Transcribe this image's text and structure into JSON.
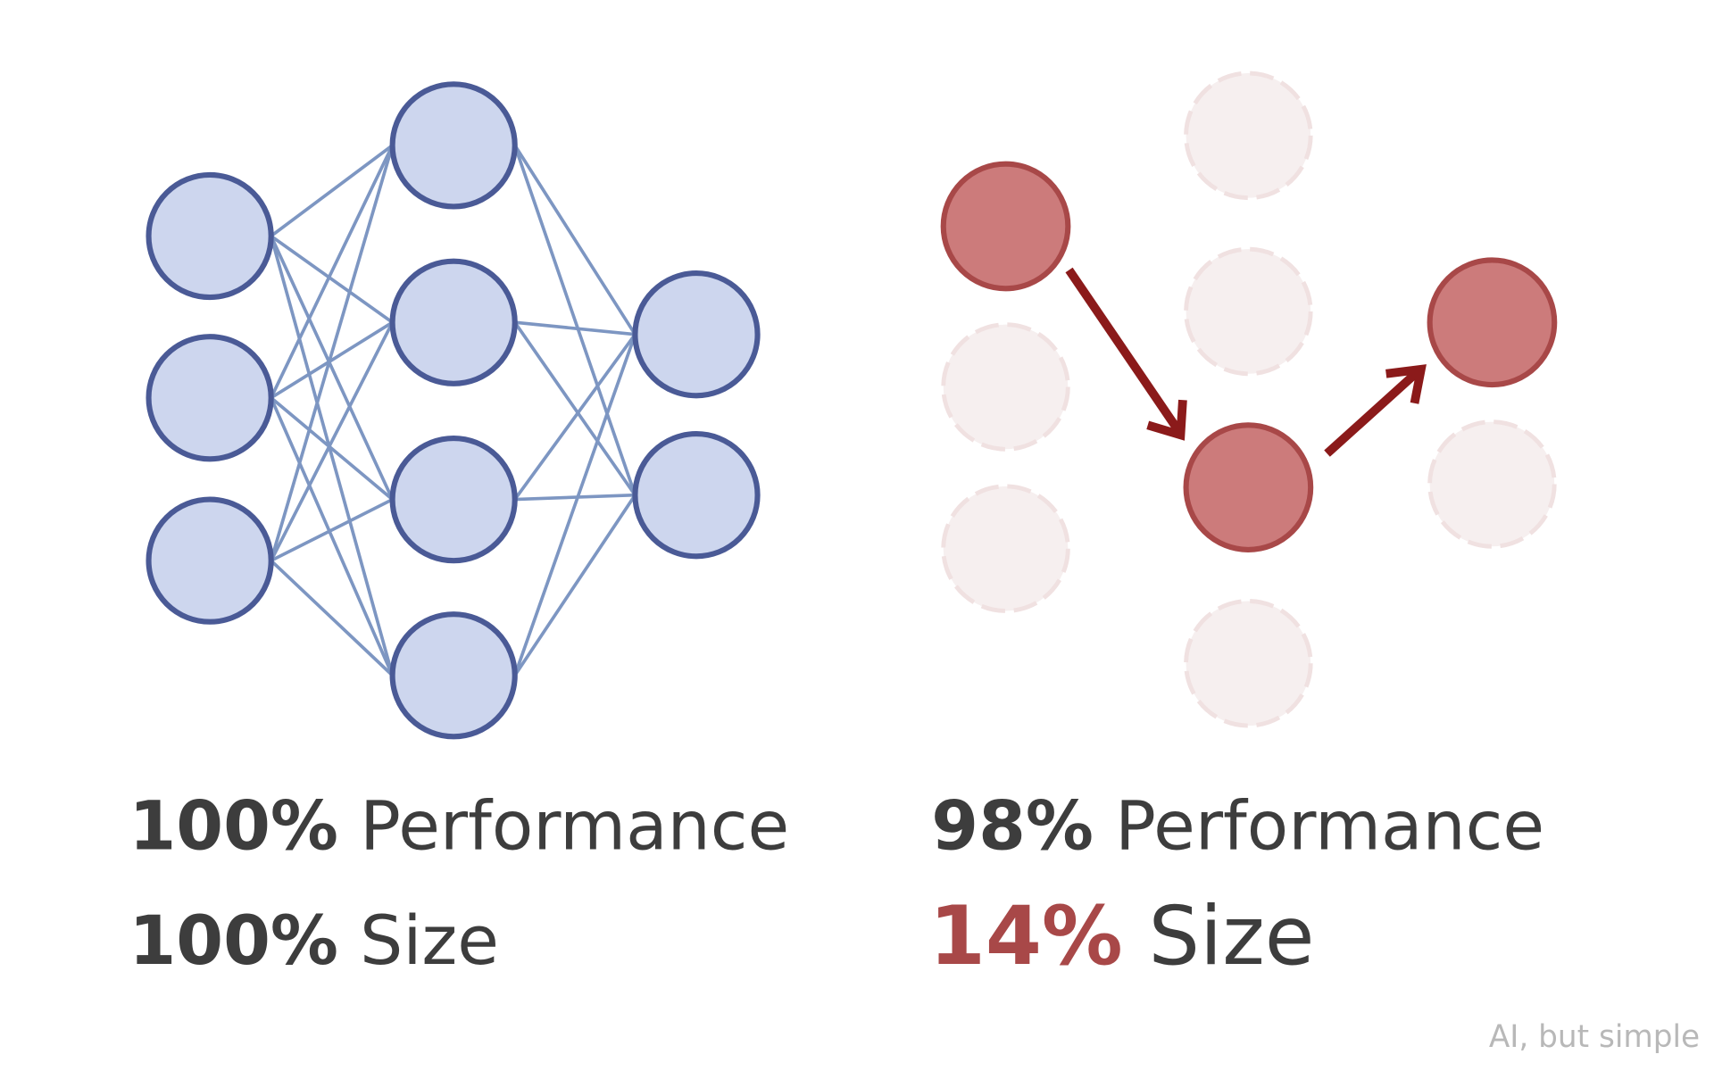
{
  "original": {
    "performance": {
      "value": "100%",
      "label": "Performance"
    },
    "size": {
      "value": "100%",
      "label": "Size"
    }
  },
  "pruned": {
    "performance": {
      "value": "98%",
      "label": "Performance"
    },
    "size": {
      "value": "14%",
      "label": "Size"
    }
  },
  "footer": "AI, but simple"
}
